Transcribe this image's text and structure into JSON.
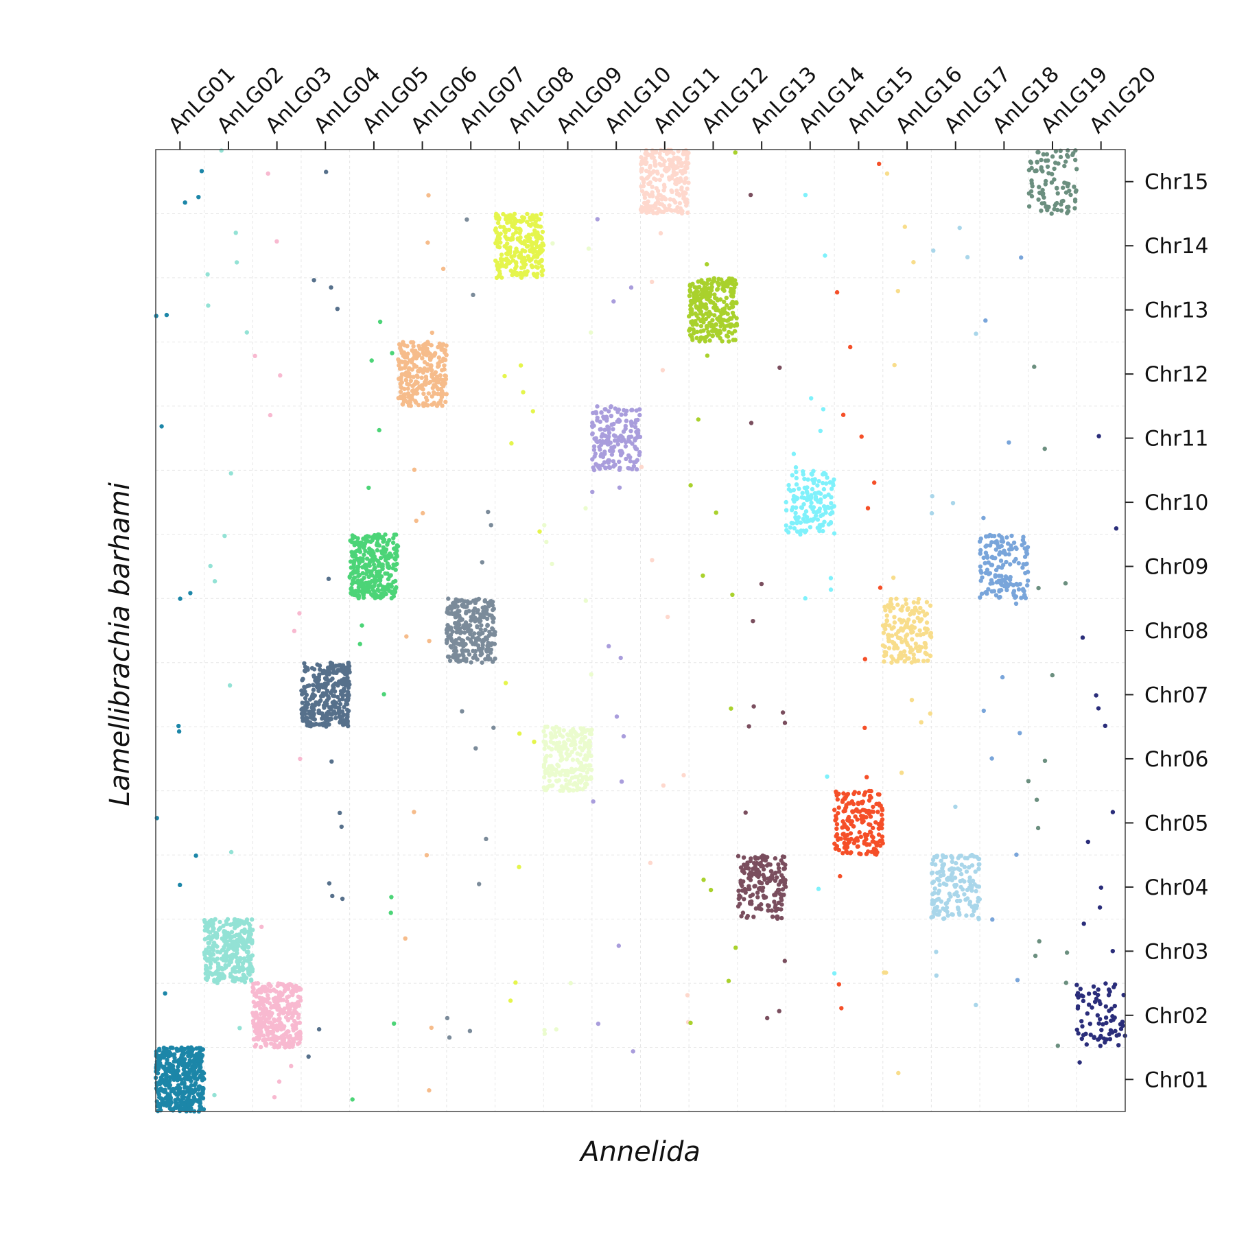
{
  "chart_data": {
    "type": "scatter",
    "title": "",
    "xlabel": "Annelida",
    "ylabel": "Lamellibrachia barhami",
    "x_categories": [
      "AnLG01",
      "AnLG02",
      "AnLG03",
      "AnLG04",
      "AnLG05",
      "AnLG06",
      "AnLG07",
      "AnLG08",
      "AnLG09",
      "AnLG10",
      "AnLG11",
      "AnLG12",
      "AnLG13",
      "AnLG14",
      "AnLG15",
      "AnLG16",
      "AnLG17",
      "AnLG18",
      "AnLG19",
      "AnLG20"
    ],
    "y_categories": [
      "Chr01",
      "Chr02",
      "Chr03",
      "Chr04",
      "Chr05",
      "Chr06",
      "Chr07",
      "Chr08",
      "Chr09",
      "Chr10",
      "Chr11",
      "Chr12",
      "Chr13",
      "Chr14",
      "Chr15"
    ],
    "x_axis_position": "top",
    "y_axis_position": "right",
    "grid": "dashed, light, at category boundaries",
    "legend": "none",
    "colors": {
      "AnLG01": "#1c86a8",
      "AnLG02": "#93e2d5",
      "AnLG03": "#f8b9d0",
      "AnLG04": "#56708b",
      "AnLG05": "#4cd477",
      "AnLG06": "#f6bc8b",
      "AnLG07": "#7b8b9a",
      "AnLG08": "#e5f54c",
      "AnLG09": "#ebfcce",
      "AnLG10": "#a99ddc",
      "AnLG11": "#fed8cd",
      "AnLG12": "#a9d12c",
      "AnLG13": "#7a4e5e",
      "AnLG14": "#7ff1fb",
      "AnLG15": "#f54f28",
      "AnLG16": "#f8dd8b",
      "AnLG17": "#a9d6ea",
      "AnLG18": "#79a5da",
      "AnLG19": "#6b8f7f",
      "AnLG20": "#2a2d7a"
    },
    "blocks": [
      {
        "x": "AnLG01",
        "y": "Chr01",
        "count": 420
      },
      {
        "x": "AnLG02",
        "y": "Chr03",
        "count": 330
      },
      {
        "x": "AnLG03",
        "y": "Chr02",
        "count": 340
      },
      {
        "x": "AnLG04",
        "y": "Chr07",
        "count": 300
      },
      {
        "x": "AnLG05",
        "y": "Chr09",
        "count": 300
      },
      {
        "x": "AnLG06",
        "y": "Chr12",
        "count": 270
      },
      {
        "x": "AnLG07",
        "y": "Chr08",
        "count": 270
      },
      {
        "x": "AnLG08",
        "y": "Chr14",
        "count": 260
      },
      {
        "x": "AnLG09",
        "y": "Chr06",
        "count": 240
      },
      {
        "x": "AnLG10",
        "y": "Chr11",
        "count": 180
      },
      {
        "x": "AnLG11",
        "y": "Chr15",
        "count": 240
      },
      {
        "x": "AnLG12",
        "y": "Chr13",
        "count": 270
      },
      {
        "x": "AnLG13",
        "y": "Chr04",
        "count": 170
      },
      {
        "x": "AnLG14",
        "y": "Chr10",
        "count": 150
      },
      {
        "x": "AnLG15",
        "y": "Chr05",
        "count": 190
      },
      {
        "x": "AnLG16",
        "y": "Chr08",
        "count": 170
      },
      {
        "x": "AnLG17",
        "y": "Chr04",
        "count": 160
      },
      {
        "x": "AnLG18",
        "y": "Chr09",
        "count": 150
      },
      {
        "x": "AnLG19",
        "y": "Chr15",
        "count": 95
      },
      {
        "x": "AnLG20",
        "y": "Chr02",
        "count": 75
      }
    ]
  }
}
